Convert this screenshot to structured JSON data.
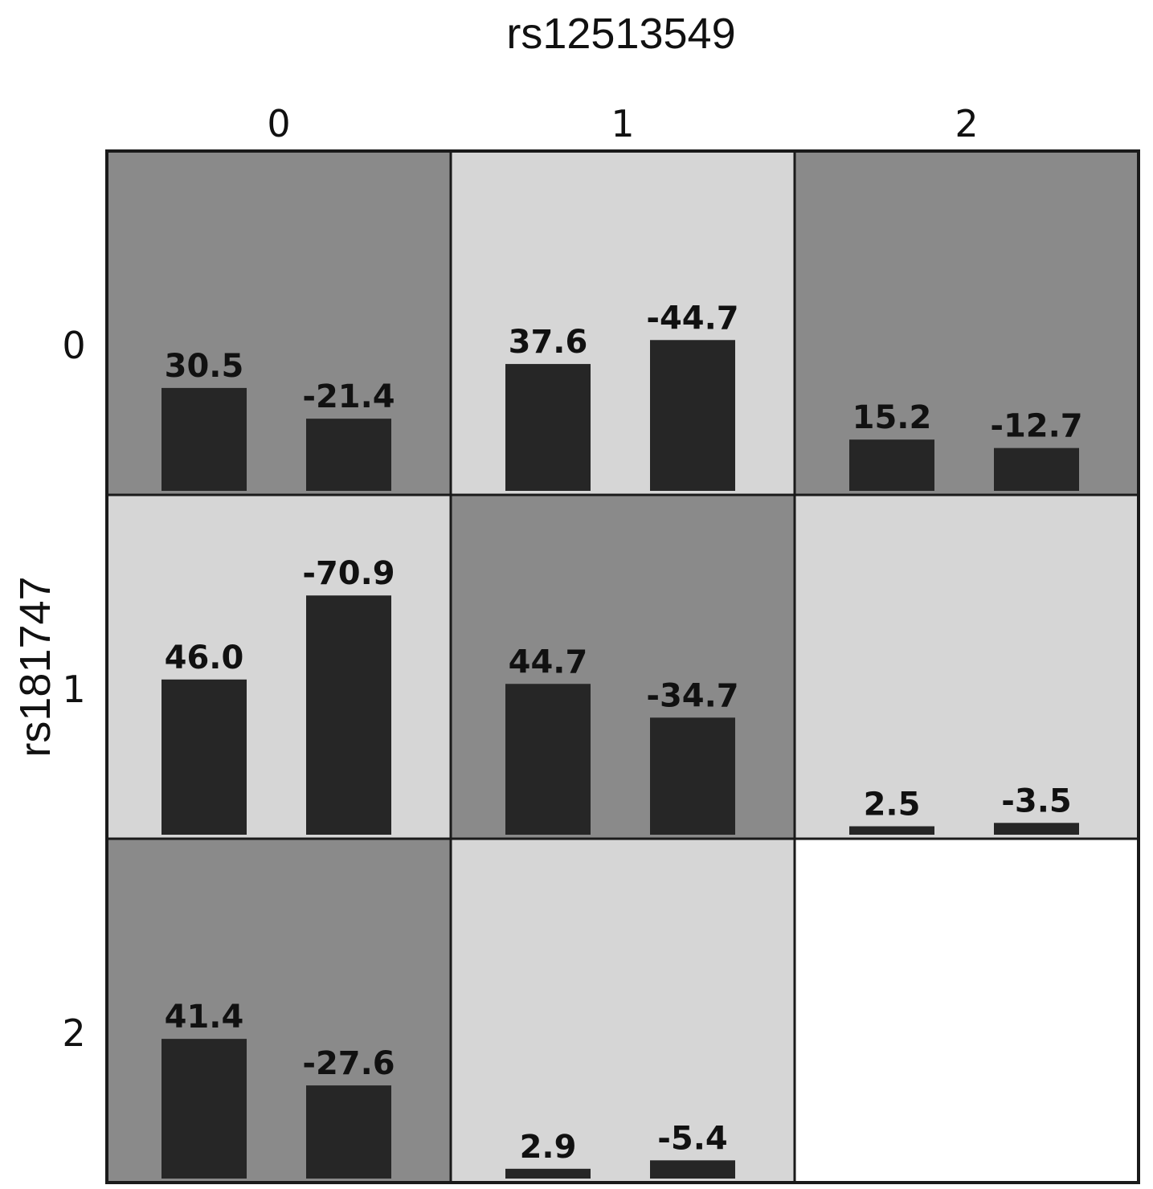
{
  "chart_data": {
    "type": "bar",
    "title": "rs12513549",
    "xlabel": "rs12513549",
    "ylabel": "rs181747",
    "column_labels": [
      "0",
      "1",
      "2"
    ],
    "row_labels": [
      "0",
      "1",
      "2"
    ],
    "ylim": [
      0,
      80
    ],
    "cells": [
      {
        "row": "0",
        "col": "0",
        "shade": "dark",
        "values": [
          30.5,
          -21.4
        ],
        "labels": [
          "30.5",
          "-21.4"
        ]
      },
      {
        "row": "0",
        "col": "1",
        "shade": "light",
        "values": [
          37.6,
          -44.7
        ],
        "labels": [
          "37.6",
          "-44.7"
        ]
      },
      {
        "row": "0",
        "col": "2",
        "shade": "dark",
        "values": [
          15.2,
          -12.7
        ],
        "labels": [
          "15.2",
          "-12.7"
        ]
      },
      {
        "row": "1",
        "col": "0",
        "shade": "light",
        "values": [
          46.0,
          -70.9
        ],
        "labels": [
          "46.0",
          "-70.9"
        ]
      },
      {
        "row": "1",
        "col": "1",
        "shade": "dark",
        "values": [
          44.7,
          -34.7
        ],
        "labels": [
          "44.7",
          "-34.7"
        ]
      },
      {
        "row": "1",
        "col": "2",
        "shade": "light",
        "values": [
          2.5,
          -3.5
        ],
        "labels": [
          "2.5",
          "-3.5"
        ]
      },
      {
        "row": "2",
        "col": "0",
        "shade": "dark",
        "values": [
          41.4,
          -27.6
        ],
        "labels": [
          "41.4",
          "-27.6"
        ]
      },
      {
        "row": "2",
        "col": "1",
        "shade": "light",
        "values": [
          2.9,
          -5.4
        ],
        "labels": [
          "2.9",
          "-5.4"
        ]
      },
      {
        "row": "2",
        "col": "2",
        "shade": "none",
        "values": [],
        "labels": []
      }
    ]
  },
  "colors": {
    "dark_cell": "#8a8a8a",
    "light_cell": "#d6d6d6",
    "empty_cell": "#ffffff",
    "bar": "#262626",
    "border": "#1a1a1a"
  }
}
